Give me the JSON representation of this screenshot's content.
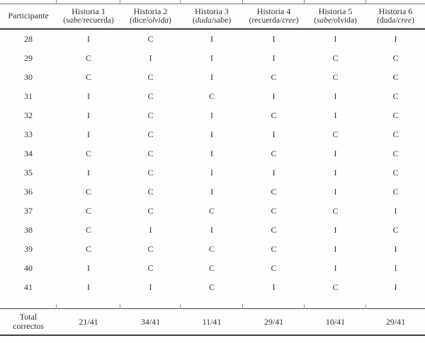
{
  "theme": {
    "ink_color": "#2f2f2f",
    "rule_color": "#3e3e3e"
  },
  "table": {
    "participant_header": "Participante",
    "columns": [
      {
        "title": "Historia 1",
        "subtitle_parts": [
          {
            "text": "(",
            "italic": false
          },
          {
            "text": "sabe",
            "italic": true
          },
          {
            "text": "/recuerda)",
            "italic": false
          }
        ]
      },
      {
        "title": "Historia 2",
        "subtitle_parts": [
          {
            "text": "(dice/",
            "italic": false
          },
          {
            "text": "olvida",
            "italic": true
          },
          {
            "text": ")",
            "italic": false
          }
        ]
      },
      {
        "title": "Historia 3",
        "subtitle_parts": [
          {
            "text": "(",
            "italic": false
          },
          {
            "text": "duda",
            "italic": true
          },
          {
            "text": "/sabe)",
            "italic": false
          }
        ]
      },
      {
        "title": "Historia 4",
        "subtitle_parts": [
          {
            "text": "(recuerda/",
            "italic": false
          },
          {
            "text": "cree",
            "italic": true
          },
          {
            "text": ")",
            "italic": false
          }
        ]
      },
      {
        "title": "Historia 5",
        "subtitle_parts": [
          {
            "text": "(",
            "italic": false
          },
          {
            "text": "sabe",
            "italic": true
          },
          {
            "text": "/olvida)",
            "italic": false
          }
        ]
      },
      {
        "title": "Historia 6",
        "subtitle_parts": [
          {
            "text": "(duda/",
            "italic": false
          },
          {
            "text": "cree",
            "italic": true
          },
          {
            "text": ")",
            "italic": false
          }
        ]
      }
    ],
    "rows": [
      {
        "participant": "28",
        "values": [
          "I",
          "C",
          "I",
          "I",
          "I",
          "I"
        ]
      },
      {
        "participant": "29",
        "values": [
          "C",
          "I",
          "I",
          "I",
          "C",
          "C"
        ]
      },
      {
        "participant": "30",
        "values": [
          "C",
          "C",
          "I",
          "C",
          "C",
          "C"
        ]
      },
      {
        "participant": "31",
        "values": [
          "I",
          "C",
          "C",
          "I",
          "I",
          "C"
        ]
      },
      {
        "participant": "32",
        "values": [
          "I",
          "C",
          "I",
          "C",
          "I",
          "C"
        ]
      },
      {
        "participant": "33",
        "values": [
          "I",
          "C",
          "I",
          "I",
          "C",
          "C"
        ]
      },
      {
        "participant": "34",
        "values": [
          "C",
          "C",
          "I",
          "C",
          "I",
          "C"
        ]
      },
      {
        "participant": "35",
        "values": [
          "I",
          "C",
          "I",
          "I",
          "I",
          "C"
        ]
      },
      {
        "participant": "36",
        "values": [
          "C",
          "C",
          "I",
          "C",
          "I",
          "C"
        ]
      },
      {
        "participant": "37",
        "values": [
          "C",
          "C",
          "C",
          "C",
          "C",
          "I"
        ]
      },
      {
        "participant": "38",
        "values": [
          "C",
          "I",
          "I",
          "C",
          "I",
          "C"
        ]
      },
      {
        "participant": "39",
        "values": [
          "C",
          "C",
          "C",
          "C",
          "I",
          "I"
        ]
      },
      {
        "participant": "40",
        "values": [
          "I",
          "C",
          "C",
          "C",
          "I",
          "I"
        ]
      },
      {
        "participant": "41",
        "values": [
          "I",
          "I",
          "C",
          "I",
          "C",
          "I"
        ]
      }
    ],
    "total": {
      "label_lines": [
        "Total",
        "correctos"
      ],
      "values": [
        "21/41",
        "34/41",
        "11/41",
        "29/41",
        "10/41",
        "29/41"
      ]
    }
  }
}
